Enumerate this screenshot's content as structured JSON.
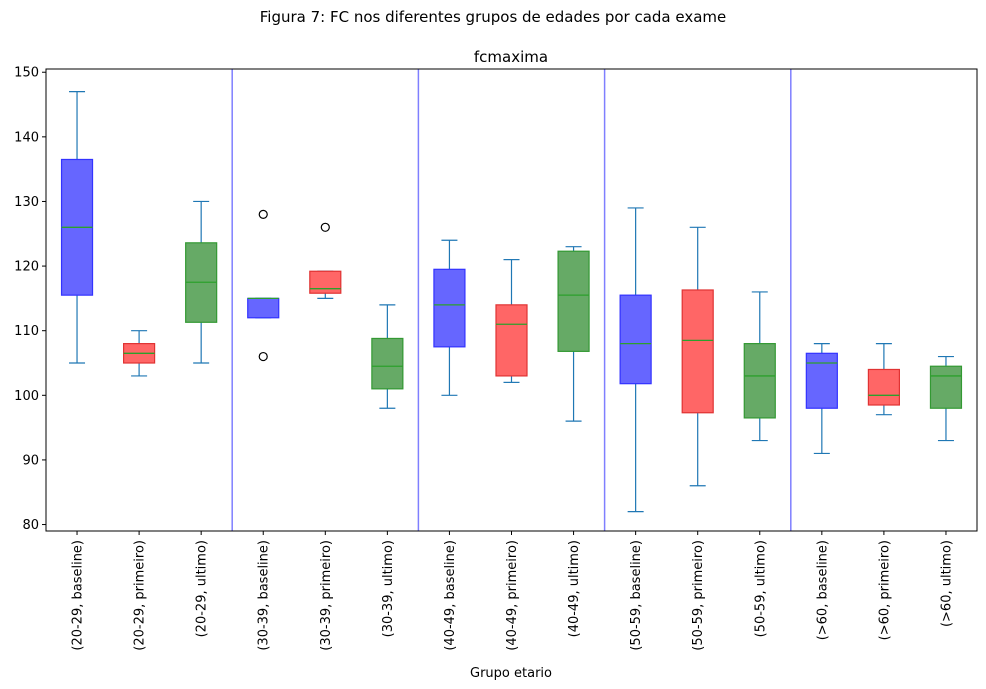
{
  "figure_title": "Figura 7: FC nos diferentes grupos de edades por cada exame",
  "chart_data": {
    "type": "box",
    "title": "fcmaxima",
    "xlabel": "Grupo etario",
    "ylabel": "",
    "ylim": [
      79,
      150.5
    ],
    "yticks": [
      80,
      90,
      100,
      110,
      120,
      130,
      140,
      150
    ],
    "grid": false,
    "group_separators_after": [
      3,
      6,
      9,
      12
    ],
    "colors": {
      "baseline": "#6666ff",
      "primeiro": "#ff6666",
      "ultimo": "#66aa66",
      "baseline_edge": "#3333ff",
      "primeiro_edge": "#e03333",
      "ultimo_edge": "#339933",
      "whisker": "#1f77b4",
      "median": "#2ca02c",
      "separator": "#7f7fff"
    },
    "boxes": [
      {
        "label": "(20-29, baseline)",
        "kind": "baseline",
        "whislo": 105,
        "q1": 115.5,
        "med": 126,
        "q3": 136.5,
        "whishi": 147,
        "fliers": []
      },
      {
        "label": "(20-29, primeiro)",
        "kind": "primeiro",
        "whislo": 103,
        "q1": 105,
        "med": 106.5,
        "q3": 108,
        "whishi": 110,
        "fliers": []
      },
      {
        "label": "(20-29, ultimo)",
        "kind": "ultimo",
        "whislo": 105,
        "q1": 111.3,
        "med": 117.5,
        "q3": 123.6,
        "whishi": 130,
        "fliers": []
      },
      {
        "label": "(30-39, baseline)",
        "kind": "baseline",
        "whislo": 112,
        "q1": 112,
        "med": 115,
        "q3": 115,
        "whishi": 115,
        "fliers": [
          128,
          106
        ]
      },
      {
        "label": "(30-39, primeiro)",
        "kind": "primeiro",
        "whislo": 115,
        "q1": 115.8,
        "med": 116.5,
        "q3": 119.2,
        "whishi": 119.2,
        "fliers": [
          126
        ]
      },
      {
        "label": "(30-39, ultimo)",
        "kind": "ultimo",
        "whislo": 98,
        "q1": 101,
        "med": 104.5,
        "q3": 108.8,
        "whishi": 114,
        "fliers": []
      },
      {
        "label": "(40-49, baseline)",
        "kind": "baseline",
        "whislo": 100,
        "q1": 107.5,
        "med": 114,
        "q3": 119.5,
        "whishi": 124,
        "fliers": []
      },
      {
        "label": "(40-49, primeiro)",
        "kind": "primeiro",
        "whislo": 102,
        "q1": 103,
        "med": 111,
        "q3": 114,
        "whishi": 121,
        "fliers": []
      },
      {
        "label": "(40-49, ultimo)",
        "kind": "ultimo",
        "whislo": 96,
        "q1": 106.8,
        "med": 115.5,
        "q3": 122.3,
        "whishi": 123,
        "fliers": []
      },
      {
        "label": "(50-59, baseline)",
        "kind": "baseline",
        "whislo": 82,
        "q1": 101.8,
        "med": 108,
        "q3": 115.5,
        "whishi": 129,
        "fliers": []
      },
      {
        "label": "(50-59, primeiro)",
        "kind": "primeiro",
        "whislo": 86,
        "q1": 97.3,
        "med": 108.5,
        "q3": 116.3,
        "whishi": 126,
        "fliers": []
      },
      {
        "label": "(50-59, ultimo)",
        "kind": "ultimo",
        "whislo": 93,
        "q1": 96.5,
        "med": 103,
        "q3": 108,
        "whishi": 116,
        "fliers": []
      },
      {
        "label": "(>60, baseline)",
        "kind": "baseline",
        "whislo": 91,
        "q1": 98,
        "med": 105,
        "q3": 106.5,
        "whishi": 108,
        "fliers": []
      },
      {
        "label": "(>60, primeiro)",
        "kind": "primeiro",
        "whislo": 97,
        "q1": 98.5,
        "med": 100,
        "q3": 104,
        "whishi": 108,
        "fliers": []
      },
      {
        "label": "(>60, ultimo)",
        "kind": "ultimo",
        "whislo": 93,
        "q1": 98,
        "med": 103,
        "q3": 104.5,
        "whishi": 106,
        "fliers": []
      }
    ]
  }
}
